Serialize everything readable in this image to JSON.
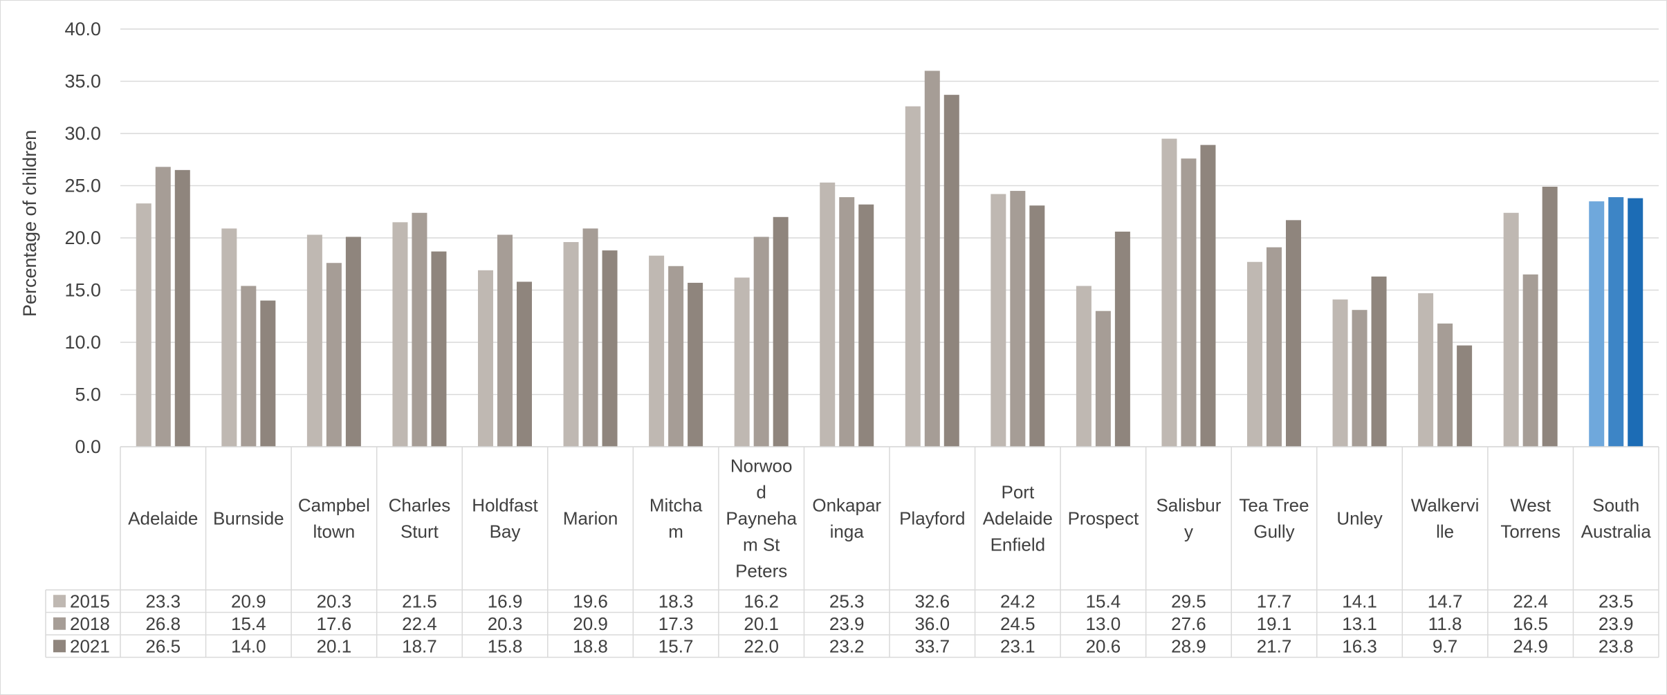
{
  "chart_data": {
    "type": "bar",
    "ylabel": "Percentage of children",
    "ylim": [
      0,
      40
    ],
    "yticks": [
      "0.0",
      "5.0",
      "10.0",
      "15.0",
      "20.0",
      "25.0",
      "30.0",
      "35.0",
      "40.0"
    ],
    "grid": true,
    "legend_placement": "data-table-left",
    "categories": [
      "Adelaide",
      "Burnside",
      "Campbeltown",
      "Charles Sturt",
      "Holdfast Bay",
      "Marion",
      "Mitcham",
      "Norwood Payneham St Peters",
      "Onkaparinga",
      "Playford",
      "Port Adelaide Enfield",
      "Prospect",
      "Salisbury",
      "Tea Tree Gully",
      "Unley",
      "Walkerville",
      "West Torrens",
      "South Australia"
    ],
    "category_lines": [
      [
        "Adelaide"
      ],
      [
        "Burnside"
      ],
      [
        "Campbel",
        "ltown"
      ],
      [
        "Charles",
        "Sturt"
      ],
      [
        "Holdfast",
        "Bay"
      ],
      [
        "Marion"
      ],
      [
        "Mitcha",
        "m"
      ],
      [
        "Norwoo",
        "d",
        "Payneha",
        "m St",
        "Peters"
      ],
      [
        "Onkapar",
        "inga"
      ],
      [
        "Playford"
      ],
      [
        "Port",
        "Adelaide",
        "Enfield"
      ],
      [
        "Prospect"
      ],
      [
        "Salisbur",
        "y"
      ],
      [
        "Tea Tree",
        "Gully"
      ],
      [
        "Unley"
      ],
      [
        "Walkervi",
        "lle"
      ],
      [
        "West",
        "Torrens"
      ],
      [
        "South",
        "Australia"
      ]
    ],
    "series": [
      {
        "name": "2015",
        "labels": [
          "23.3",
          "20.9",
          "20.3",
          "21.5",
          "16.9",
          "19.6",
          "18.3",
          "16.2",
          "25.3",
          "32.6",
          "24.2",
          "15.4",
          "29.5",
          "17.7",
          "14.1",
          "14.7",
          "22.4",
          "23.5"
        ],
        "values": [
          23.3,
          20.9,
          20.3,
          21.5,
          16.9,
          19.6,
          18.3,
          16.2,
          25.3,
          32.6,
          24.2,
          15.4,
          29.5,
          17.7,
          14.1,
          14.7,
          22.4,
          23.5
        ]
      },
      {
        "name": "2018",
        "labels": [
          "26.8",
          "15.4",
          "17.6",
          "22.4",
          "20.3",
          "20.9",
          "17.3",
          "20.1",
          "23.9",
          "36.0",
          "24.5",
          "13.0",
          "27.6",
          "19.1",
          "13.1",
          "11.8",
          "16.5",
          "23.9"
        ],
        "values": [
          26.8,
          15.4,
          17.6,
          22.4,
          20.3,
          20.9,
          17.3,
          20.1,
          23.9,
          36.0,
          24.5,
          13.0,
          27.6,
          19.1,
          13.1,
          11.8,
          16.5,
          23.9
        ]
      },
      {
        "name": "2021",
        "labels": [
          "26.5",
          "14.0",
          "20.1",
          "18.7",
          "15.8",
          "18.8",
          "15.7",
          "22.0",
          "23.2",
          "33.7",
          "23.1",
          "20.6",
          "28.9",
          "21.7",
          "16.3",
          "9.7",
          "24.9",
          "23.8"
        ],
        "values": [
          26.5,
          14.0,
          20.1,
          18.7,
          15.8,
          18.8,
          15.7,
          22.0,
          23.2,
          33.7,
          23.1,
          20.6,
          28.9,
          21.7,
          16.3,
          9.7,
          24.9,
          23.8
        ]
      }
    ],
    "colors": {
      "series": [
        "#bfb8b2",
        "#a69d96",
        "#8f857d"
      ],
      "highlight": [
        "#6fa8dc",
        "#3d85c6",
        "#1c6cb5"
      ],
      "highlight_category": "South Australia",
      "grid": "#d9d9d9"
    }
  }
}
